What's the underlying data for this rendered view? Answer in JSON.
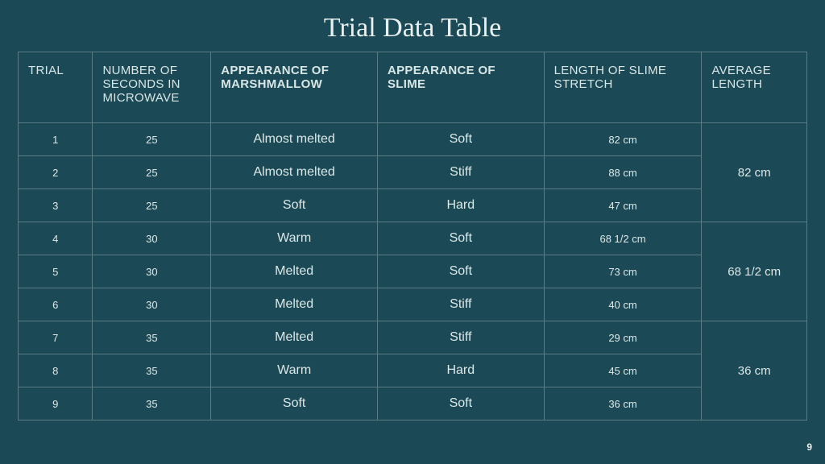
{
  "title": "Trial Data Table",
  "pageNumber": "9",
  "columns": [
    {
      "label": "TRIAL",
      "bold": false
    },
    {
      "label": "NUMBER OF SECONDS IN MICROWAVE",
      "bold": false
    },
    {
      "label": "APPEARANCE OF MARSHMALLOW",
      "bold": true
    },
    {
      "label": "APPEARANCE OF SLIME",
      "bold": true
    },
    {
      "label": "LENGTH OF SLIME STRETCH",
      "bold": false
    },
    {
      "label": "AVERAGE LENGTH",
      "bold": false
    }
  ],
  "groups": [
    {
      "average": "82 cm",
      "rows": [
        {
          "trial": "1",
          "seconds": "25",
          "marshmallow": "Almost melted",
          "slime": "Soft",
          "length": "82 cm"
        },
        {
          "trial": "2",
          "seconds": "25",
          "marshmallow": "Almost melted",
          "slime": "Stiff",
          "length": "88 cm"
        },
        {
          "trial": "3",
          "seconds": "25",
          "marshmallow": "Soft",
          "slime": "Hard",
          "length": "47 cm"
        }
      ]
    },
    {
      "average": "68 1/2 cm",
      "rows": [
        {
          "trial": "4",
          "seconds": "30",
          "marshmallow": "Warm",
          "slime": "Soft",
          "length": "68 1/2 cm"
        },
        {
          "trial": "5",
          "seconds": "30",
          "marshmallow": "Melted",
          "slime": "Soft",
          "length": "73 cm"
        },
        {
          "trial": "6",
          "seconds": "30",
          "marshmallow": "Melted",
          "slime": "Stiff",
          "length": "40 cm"
        }
      ]
    },
    {
      "average": "36 cm",
      "rows": [
        {
          "trial": "7",
          "seconds": "35",
          "marshmallow": "Melted",
          "slime": "Stiff",
          "length": "29 cm"
        },
        {
          "trial": "8",
          "seconds": "35",
          "marshmallow": "Warm",
          "slime": "Hard",
          "length": "45 cm"
        },
        {
          "trial": "9",
          "seconds": "35",
          "marshmallow": "Soft",
          "slime": "Soft",
          "length": "36 cm"
        }
      ]
    }
  ],
  "colors": {
    "background": "#1b4a56",
    "border": "#5a7d85",
    "text": "#e8f0f0"
  }
}
